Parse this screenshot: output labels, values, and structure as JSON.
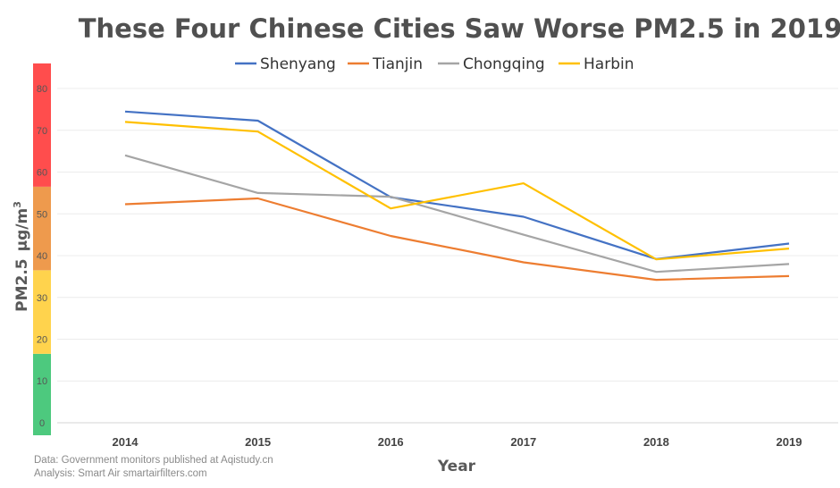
{
  "chart_data": {
    "type": "line",
    "title": "These Four Chinese Cities Saw Worse PM2.5 in 2019",
    "xlabel": "Year",
    "ylabel_main": "PM2.5",
    "ylabel_unit": "μg/m",
    "ylabel_sup": "3",
    "x": [
      "2014",
      "2015",
      "2016",
      "2017",
      "2018",
      "2019"
    ],
    "yticks": [
      0,
      10,
      20,
      30,
      40,
      50,
      60,
      70,
      80
    ],
    "ylim": [
      -3,
      86
    ],
    "grid": true,
    "legend_position": "top",
    "series": [
      {
        "name": "Shenyang",
        "color": "#4472C4",
        "values": [
          74.5,
          72.3,
          54.0,
          49.3,
          39.2,
          42.9
        ]
      },
      {
        "name": "Tianjin",
        "color": "#ED7D31",
        "values": [
          52.3,
          53.7,
          44.7,
          38.4,
          34.2,
          35.1
        ]
      },
      {
        "name": "Chongqing",
        "color": "#A5A5A5",
        "values": [
          64.0,
          55.0,
          54.1,
          45.0,
          36.1,
          38.0
        ]
      },
      {
        "name": "Harbin",
        "color": "#FFC000",
        "values": [
          72.0,
          69.7,
          51.3,
          57.3,
          39.1,
          41.7
        ]
      }
    ],
    "aqi_bands": [
      {
        "from": -3,
        "to": 16.5,
        "color": "#4DC97E"
      },
      {
        "from": 16.5,
        "to": 36.5,
        "color": "#FFD34D"
      },
      {
        "from": 36.5,
        "to": 56.5,
        "color": "#EE9A4D"
      },
      {
        "from": 56.5,
        "to": 86,
        "color": "#FF4D4D"
      }
    ]
  },
  "source": {
    "line1": "Data: Government monitors published at Aqistudy.cn",
    "line2": "Analysis: Smart Air smartairfilters.com"
  }
}
